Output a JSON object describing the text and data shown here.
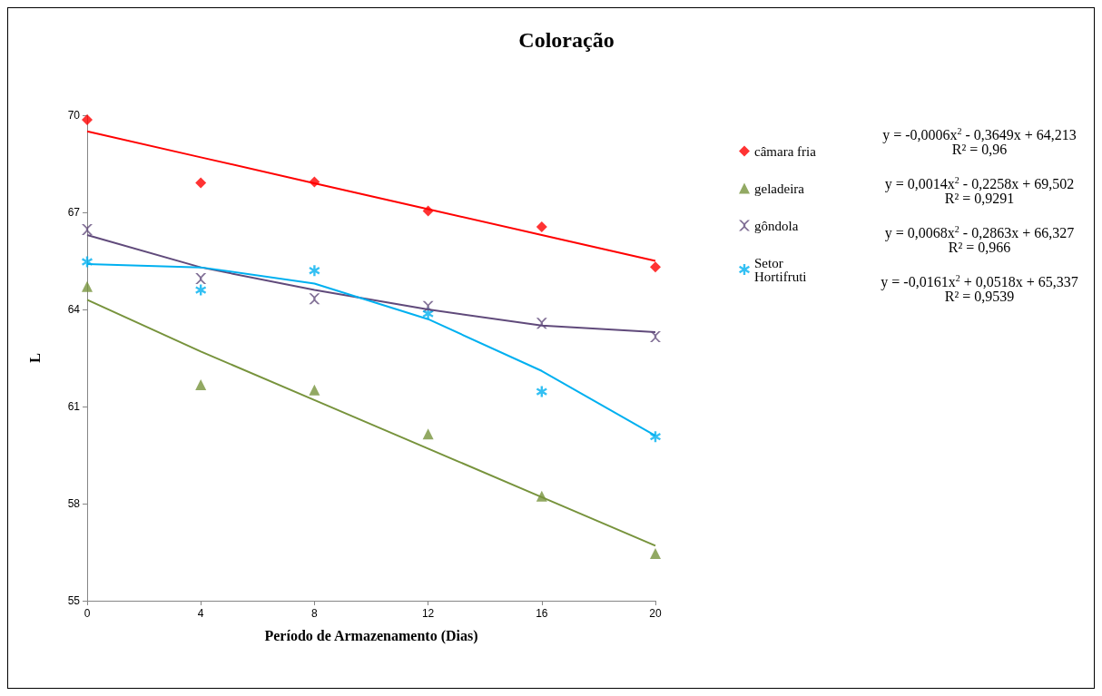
{
  "chart_data": {
    "type": "scatter",
    "title": "Coloração",
    "xlabel": "Período de Armazenamento (Dias)",
    "ylabel": "L",
    "x": [
      0,
      4,
      8,
      12,
      16,
      20
    ],
    "series": [
      {
        "name": "câmara fria",
        "color": "#ff0000",
        "marker": "diamond",
        "values": [
          69.86,
          67.91,
          67.94,
          67.04,
          66.55,
          65.31
        ]
      },
      {
        "name": "geladeira",
        "color": "#77933c",
        "marker": "triangle",
        "values": [
          64.71,
          61.67,
          61.51,
          60.15,
          58.23,
          56.46
        ]
      },
      {
        "name": "gôndola",
        "color": "#604a7b",
        "marker": "cross",
        "values": [
          66.47,
          64.95,
          64.33,
          64.09,
          63.57,
          63.16
        ]
      },
      {
        "name": "Setor Hortifruti",
        "color": "#00b0f0",
        "marker": "star",
        "values": [
          65.47,
          64.6,
          65.2,
          63.87,
          61.46,
          60.07
        ]
      },
      {
        "type": "line",
        "color": "#ff0000",
        "x": [
          0,
          4,
          8,
          12,
          16,
          20
        ],
        "values": [
          69.5,
          68.7,
          67.9,
          67.1,
          66.3,
          65.5
        ]
      },
      {
        "type": "line",
        "color": "#77933c",
        "x": [
          0,
          4,
          8,
          12,
          16,
          20
        ],
        "values": [
          64.3,
          62.7,
          61.2,
          59.7,
          58.2,
          56.7
        ]
      },
      {
        "type": "line",
        "color": "#604a7b",
        "x": [
          0,
          4,
          8,
          12,
          16,
          20
        ],
        "values": [
          66.3,
          65.3,
          64.6,
          64.0,
          63.5,
          63.3
        ]
      },
      {
        "type": "line",
        "color": "#00b0f0",
        "x": [
          0,
          4,
          8,
          12,
          16,
          20
        ],
        "values": [
          65.4,
          65.3,
          64.8,
          63.7,
          62.1,
          60.1
        ]
      }
    ],
    "annotations": [
      "y = -0,0006x$^{2}$ - 0,3649x + 64,213",
      "R² = 0,96",
      "y = 0,0014x$^{2}$ - 0,2258x + 69,502",
      "R² = 0,9291",
      "y = 0,0068x$^{2}$ - 0,2863x + 66,327",
      "R² = 0,966",
      "y = -0,0161x$^{2}$ + 0,0518x + 65,337",
      "R² = 0,9539"
    ],
    "xlim": [
      0,
      20
    ],
    "xticks": [
      0,
      4,
      8,
      12,
      16,
      20
    ],
    "ylim": [
      55,
      70
    ],
    "yticks": [
      55,
      58,
      61,
      64,
      67,
      70
    ],
    "grid": false,
    "legend": "right",
    "line_style": "solid"
  }
}
